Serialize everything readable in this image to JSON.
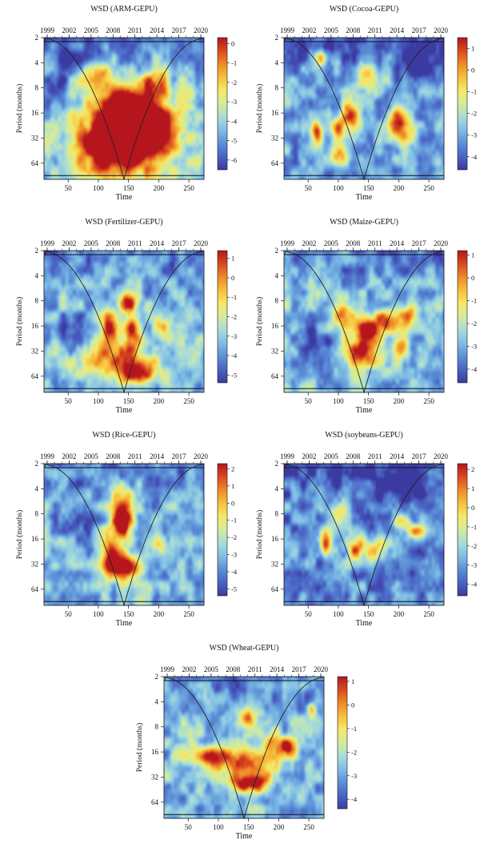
{
  "colors": {
    "scale": [
      "#3b3aa0",
      "#4a63c4",
      "#5c8fd6",
      "#7fbde6",
      "#a9dcd8",
      "#d3ec9a",
      "#f6e76a",
      "#f6bf3c",
      "#ee8a27",
      "#d94a1f",
      "#b5161e"
    ],
    "cone": "#222222",
    "frame": "#111111"
  },
  "chart_data": [
    {
      "type": "heatmap",
      "title": "WSD (ARM-GEPU)",
      "xlabel": "Time",
      "ylabel": "Period (months)",
      "x_ticks": [
        50,
        100,
        150,
        200,
        250
      ],
      "top_ticks": [
        "1999",
        "2002",
        "2005",
        "2008",
        "2011",
        "2014",
        "2017",
        "2020"
      ],
      "y_ticks": [
        "2",
        "4",
        "8",
        "16",
        "32",
        "64"
      ],
      "colorbar_ticks": [
        "0",
        "-1",
        "-2",
        "-3",
        "-4",
        "-5",
        "-6"
      ],
      "colorbar_range": [
        -6.5,
        0.3
      ],
      "xlim": [
        10,
        275
      ],
      "ylim_period": [
        2,
        100
      ],
      "background": 0.3,
      "hotspots": [
        {
          "t": 150,
          "p": 30,
          "v": 0.85,
          "st": 55,
          "sp": 1.2
        },
        {
          "t": 145,
          "p": 16,
          "v": 0.7,
          "st": 22,
          "sp": 0.6
        },
        {
          "t": 180,
          "p": 22,
          "v": 0.65,
          "st": 30,
          "sp": 0.7
        },
        {
          "t": 115,
          "p": 40,
          "v": 0.55,
          "st": 35,
          "sp": 0.6
        },
        {
          "t": 100,
          "p": 6,
          "v": 0.5,
          "st": 18,
          "sp": 0.5
        },
        {
          "t": 195,
          "p": 7,
          "v": 0.45,
          "st": 15,
          "sp": 0.4
        },
        {
          "t": 30,
          "p": 8,
          "v": -0.35,
          "st": 15,
          "sp": 0.5
        },
        {
          "t": 60,
          "p": 3.5,
          "v": -0.25,
          "st": 25,
          "sp": 0.4
        }
      ]
    },
    {
      "type": "heatmap",
      "title": "WSD (Cocoa-GEPU)",
      "xlabel": "Time",
      "ylabel": "Period (months)",
      "x_ticks": [
        50,
        100,
        150,
        200,
        250
      ],
      "top_ticks": [
        "1999",
        "2002",
        "2005",
        "2008",
        "2011",
        "2014",
        "2017",
        "2020"
      ],
      "y_ticks": [
        "2",
        "4",
        "8",
        "16",
        "32",
        "64"
      ],
      "colorbar_ticks": [
        "1",
        "0",
        "-1",
        "-2",
        "-3",
        "-4"
      ],
      "colorbar_range": [
        -4.6,
        1.5
      ],
      "xlim": [
        10,
        275
      ],
      "ylim_period": [
        2,
        100
      ],
      "background": 0.25,
      "hotspots": [
        {
          "t": 200,
          "p": 22,
          "v": 0.85,
          "st": 14,
          "sp": 0.45
        },
        {
          "t": 120,
          "p": 18,
          "v": 0.65,
          "st": 12,
          "sp": 0.4
        },
        {
          "t": 65,
          "p": 28,
          "v": 0.75,
          "st": 7,
          "sp": 0.35
        },
        {
          "t": 100,
          "p": 25,
          "v": 0.55,
          "st": 8,
          "sp": 0.3
        },
        {
          "t": 100,
          "p": 50,
          "v": 0.45,
          "st": 10,
          "sp": 0.3
        },
        {
          "t": 70,
          "p": 3.5,
          "v": 0.45,
          "st": 7,
          "sp": 0.25
        },
        {
          "t": 150,
          "p": 6,
          "v": 0.3,
          "st": 20,
          "sp": 0.4
        },
        {
          "t": 230,
          "p": 4,
          "v": -0.35,
          "st": 25,
          "sp": 0.5
        }
      ]
    },
    {
      "type": "heatmap",
      "title": "WSD (Fertilizer-GEPU)",
      "xlabel": "Time",
      "ylabel": "Period (months)",
      "x_ticks": [
        50,
        100,
        150,
        200,
        250
      ],
      "top_ticks": [
        "1999",
        "2002",
        "2005",
        "2008",
        "2011",
        "2014",
        "2017",
        "2020"
      ],
      "y_ticks": [
        "2",
        "4",
        "8",
        "16",
        "32",
        "64"
      ],
      "colorbar_ticks": [
        "1",
        "0",
        "-1",
        "-2",
        "-3",
        "-4",
        "-5"
      ],
      "colorbar_range": [
        -5.4,
        1.4
      ],
      "xlim": [
        10,
        275
      ],
      "ylim_period": [
        2,
        100
      ],
      "background": 0.3,
      "hotspots": [
        {
          "t": 150,
          "p": 8,
          "v": 0.7,
          "st": 10,
          "sp": 0.3
        },
        {
          "t": 120,
          "p": 16,
          "v": 0.7,
          "st": 10,
          "sp": 0.45
        },
        {
          "t": 155,
          "p": 18,
          "v": 0.65,
          "st": 10,
          "sp": 0.5
        },
        {
          "t": 130,
          "p": 40,
          "v": 0.55,
          "st": 45,
          "sp": 0.5
        },
        {
          "t": 160,
          "p": 60,
          "v": 0.6,
          "st": 20,
          "sp": 0.3
        },
        {
          "t": 205,
          "p": 16,
          "v": 0.35,
          "st": 12,
          "sp": 0.3
        },
        {
          "t": 60,
          "p": 20,
          "v": -0.25,
          "st": 15,
          "sp": 0.5
        }
      ]
    },
    {
      "type": "heatmap",
      "title": "WSD (Maize-GEPU)",
      "xlabel": "Time",
      "ylabel": "Period (months)",
      "x_ticks": [
        50,
        100,
        150,
        200,
        250
      ],
      "top_ticks": [
        "1999",
        "2002",
        "2005",
        "2008",
        "2011",
        "2014",
        "2017",
        "2020"
      ],
      "y_ticks": [
        "2",
        "4",
        "8",
        "16",
        "32",
        "64"
      ],
      "colorbar_ticks": [
        "1",
        "0",
        "-1",
        "-2",
        "-3",
        "-4"
      ],
      "colorbar_range": [
        -4.6,
        1.2
      ],
      "xlim": [
        10,
        275
      ],
      "ylim_period": [
        2,
        100
      ],
      "background": 0.3,
      "hotspots": [
        {
          "t": 105,
          "p": 12,
          "v": 0.65,
          "st": 12,
          "sp": 0.4
        },
        {
          "t": 150,
          "p": 18,
          "v": 0.75,
          "st": 15,
          "sp": 0.35
        },
        {
          "t": 140,
          "p": 32,
          "v": 0.7,
          "st": 20,
          "sp": 0.4
        },
        {
          "t": 180,
          "p": 14,
          "v": 0.5,
          "st": 15,
          "sp": 0.35
        },
        {
          "t": 205,
          "p": 28,
          "v": 0.45,
          "st": 8,
          "sp": 0.3
        },
        {
          "t": 215,
          "p": 12,
          "v": 0.45,
          "st": 10,
          "sp": 0.3
        },
        {
          "t": 60,
          "p": 25,
          "v": -0.3,
          "st": 20,
          "sp": 0.5
        }
      ]
    },
    {
      "type": "heatmap",
      "title": "WSD (Rice-GEPU)",
      "xlabel": "Time",
      "ylabel": "Period (months)",
      "x_ticks": [
        50,
        100,
        150,
        200,
        250
      ],
      "top_ticks": [
        "1999",
        "2002",
        "2005",
        "2008",
        "2011",
        "2014",
        "2017",
        "2020"
      ],
      "y_ticks": [
        "2",
        "4",
        "8",
        "16",
        "32",
        "64"
      ],
      "colorbar_ticks": [
        "2",
        "1",
        "0",
        "-1",
        "-2",
        "-3",
        "-4",
        "-5"
      ],
      "colorbar_range": [
        -5.4,
        2.3
      ],
      "xlim": [
        10,
        275
      ],
      "ylim_period": [
        2,
        100
      ],
      "background": 0.3,
      "hotspots": [
        {
          "t": 140,
          "p": 10,
          "v": 0.9,
          "st": 12,
          "sp": 0.45
        },
        {
          "t": 145,
          "p": 35,
          "v": 0.85,
          "st": 20,
          "sp": 0.35
        },
        {
          "t": 120,
          "p": 25,
          "v": 0.55,
          "st": 10,
          "sp": 0.6
        },
        {
          "t": 140,
          "p": 5,
          "v": 0.45,
          "st": 10,
          "sp": 0.4
        },
        {
          "t": 200,
          "p": 18,
          "v": 0.4,
          "st": 8,
          "sp": 0.3
        },
        {
          "t": 65,
          "p": 10,
          "v": -0.3,
          "st": 20,
          "sp": 0.5
        }
      ]
    },
    {
      "type": "heatmap",
      "title": "WSD (soybeans-GEPU)",
      "xlabel": "Time",
      "ylabel": "Period (months)",
      "x_ticks": [
        50,
        100,
        150,
        200,
        250
      ],
      "top_ticks": [
        "1999",
        "2002",
        "2005",
        "2008",
        "2011",
        "2014",
        "2017",
        "2020"
      ],
      "y_ticks": [
        "2",
        "4",
        "8",
        "16",
        "32",
        "64"
      ],
      "colorbar_ticks": [
        "2",
        "1",
        "0",
        "-1",
        "-2",
        "-3",
        "-4"
      ],
      "colorbar_range": [
        -4.6,
        2.3
      ],
      "xlim": [
        10,
        275
      ],
      "ylim_period": [
        2,
        100
      ],
      "background": 0.2,
      "hotspots": [
        {
          "t": 80,
          "p": 18,
          "v": 0.75,
          "st": 7,
          "sp": 0.35
        },
        {
          "t": 130,
          "p": 20,
          "v": 0.65,
          "st": 12,
          "sp": 0.35
        },
        {
          "t": 165,
          "p": 22,
          "v": 0.45,
          "st": 12,
          "sp": 0.35
        },
        {
          "t": 230,
          "p": 13,
          "v": 0.6,
          "st": 12,
          "sp": 0.2
        },
        {
          "t": 205,
          "p": 10,
          "v": 0.4,
          "st": 10,
          "sp": 0.2
        },
        {
          "t": 100,
          "p": 8,
          "v": 0.3,
          "st": 15,
          "sp": 0.3
        },
        {
          "t": 200,
          "p": 3.5,
          "v": -0.3,
          "st": 30,
          "sp": 0.5
        }
      ]
    },
    {
      "type": "heatmap",
      "title": "WSD (Wheat-GEPU)",
      "xlabel": "Time",
      "ylabel": "Period (months)",
      "x_ticks": [
        50,
        100,
        150,
        200,
        250
      ],
      "top_ticks": [
        "1999",
        "2002",
        "2005",
        "2008",
        "2011",
        "2014",
        "2017",
        "2020"
      ],
      "y_ticks": [
        "2",
        "4",
        "8",
        "16",
        "32",
        "64"
      ],
      "colorbar_ticks": [
        "1",
        "0",
        "-1",
        "-2",
        "-3",
        "-4"
      ],
      "colorbar_range": [
        -4.4,
        1.2
      ],
      "xlim": [
        10,
        275
      ],
      "ylim_period": [
        2,
        100
      ],
      "background": 0.3,
      "hotspots": [
        {
          "t": 150,
          "p": 38,
          "v": 0.85,
          "st": 20,
          "sp": 0.25
        },
        {
          "t": 80,
          "p": 18,
          "v": 0.6,
          "st": 25,
          "sp": 0.3
        },
        {
          "t": 145,
          "p": 6,
          "v": 0.55,
          "st": 10,
          "sp": 0.35
        },
        {
          "t": 215,
          "p": 14,
          "v": 0.65,
          "st": 10,
          "sp": 0.25
        },
        {
          "t": 255,
          "p": 5,
          "v": 0.55,
          "st": 5,
          "sp": 0.2
        },
        {
          "t": 190,
          "p": 12,
          "v": 0.45,
          "st": 12,
          "sp": 0.3
        },
        {
          "t": 150,
          "p": 22,
          "v": 0.5,
          "st": 40,
          "sp": 0.4
        }
      ]
    }
  ]
}
